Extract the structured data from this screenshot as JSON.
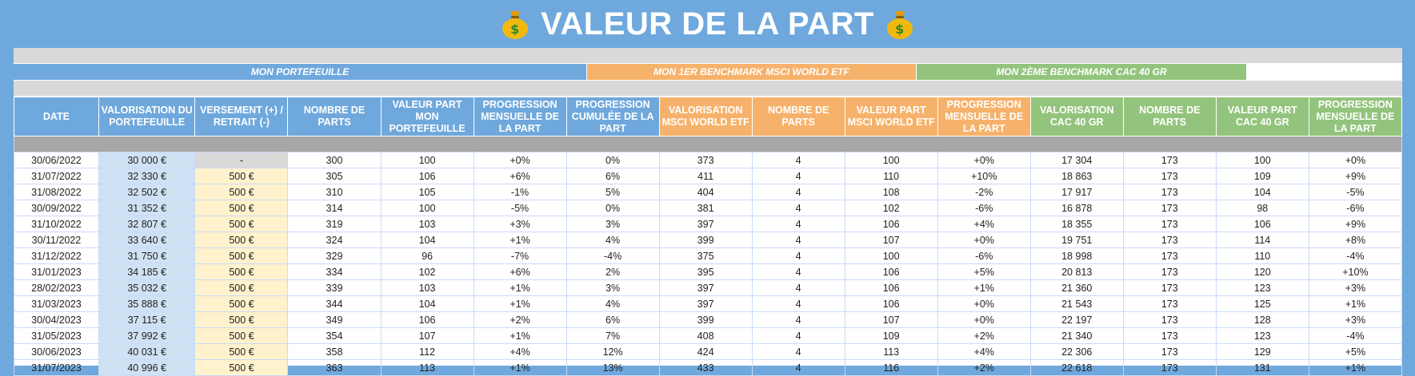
{
  "title": "VALEUR DE LA PART",
  "icons": {
    "left": "money-bag-icon",
    "right": "money-bag-icon"
  },
  "colors": {
    "blue": "#6fa8dc",
    "orange": "#f6b26b",
    "green": "#93c47d",
    "positive": "#2e9e2e",
    "negative": "#e06666"
  },
  "sections": [
    {
      "label": "MON PORTEFEUILLE",
      "color": "blue"
    },
    {
      "label": "MON 1ER BENCHMARK MSCI WORLD ETF",
      "color": "orange"
    },
    {
      "label": "MON 2ÈME BENCHMARK CAC 40 GR",
      "color": "green"
    }
  ],
  "columns": [
    {
      "key": "date",
      "label": "DATE",
      "color": "blue"
    },
    {
      "key": "valo",
      "label": "VALORISATION DU PORTEFEUILLE",
      "color": "blue"
    },
    {
      "key": "vers",
      "label": "VERSEMENT (+) / RETRAIT (-)",
      "color": "blue"
    },
    {
      "key": "parts",
      "label": "NOMBRE DE PARTS",
      "color": "blue"
    },
    {
      "key": "vpart",
      "label": "VALEUR PART MON PORTEFEUILLE",
      "color": "blue"
    },
    {
      "key": "prog",
      "label": "PROGRESSION MENSUELLE DE LA PART",
      "color": "blue"
    },
    {
      "key": "cum",
      "label": "PROGRESSION CUMULÉE DE LA PART",
      "color": "blue"
    },
    {
      "key": "mvalo",
      "label": "VALORISATION MSCI WORLD ETF",
      "color": "orange"
    },
    {
      "key": "mparts",
      "label": "NOMBRE DE PARTS",
      "color": "orange"
    },
    {
      "key": "mvpart",
      "label": "VALEUR PART MSCI WORLD ETF",
      "color": "orange"
    },
    {
      "key": "mprog",
      "label": "PROGRESSION MENSUELLE DE LA PART",
      "color": "orange"
    },
    {
      "key": "cvalo",
      "label": "VALORISATION CAC 40 GR",
      "color": "green"
    },
    {
      "key": "cparts",
      "label": "NOMBRE DE PARTS",
      "color": "green"
    },
    {
      "key": "cvpart",
      "label": "VALEUR PART CAC 40 GR",
      "color": "green"
    },
    {
      "key": "cprog",
      "label": "PROGRESSION MENSUELLE DE LA PART",
      "color": "green"
    }
  ],
  "rows": [
    [
      "30/06/2022",
      "30 000 €",
      "-",
      "300",
      "100",
      "+0%",
      "0%",
      "373",
      "4",
      "100",
      "+0%",
      "17 304",
      "173",
      "100",
      "+0%"
    ],
    [
      "31/07/2022",
      "32 330 €",
      "500 €",
      "305",
      "106",
      "+6%",
      "6%",
      "411",
      "4",
      "110",
      "+10%",
      "18 863",
      "173",
      "109",
      "+9%"
    ],
    [
      "31/08/2022",
      "32 502 €",
      "500 €",
      "310",
      "105",
      "-1%",
      "5%",
      "404",
      "4",
      "108",
      "-2%",
      "17 917",
      "173",
      "104",
      "-5%"
    ],
    [
      "30/09/2022",
      "31 352 €",
      "500 €",
      "314",
      "100",
      "-5%",
      "0%",
      "381",
      "4",
      "102",
      "-6%",
      "16 878",
      "173",
      "98",
      "-6%"
    ],
    [
      "31/10/2022",
      "32 807 €",
      "500 €",
      "319",
      "103",
      "+3%",
      "3%",
      "397",
      "4",
      "106",
      "+4%",
      "18 355",
      "173",
      "106",
      "+9%"
    ],
    [
      "30/11/2022",
      "33 640 €",
      "500 €",
      "324",
      "104",
      "+1%",
      "4%",
      "399",
      "4",
      "107",
      "+0%",
      "19 751",
      "173",
      "114",
      "+8%"
    ],
    [
      "31/12/2022",
      "31 750 €",
      "500 €",
      "329",
      "96",
      "-7%",
      "-4%",
      "375",
      "4",
      "100",
      "-6%",
      "18 998",
      "173",
      "110",
      "-4%"
    ],
    [
      "31/01/2023",
      "34 185 €",
      "500 €",
      "334",
      "102",
      "+6%",
      "2%",
      "395",
      "4",
      "106",
      "+5%",
      "20 813",
      "173",
      "120",
      "+10%"
    ],
    [
      "28/02/2023",
      "35 032 €",
      "500 €",
      "339",
      "103",
      "+1%",
      "3%",
      "397",
      "4",
      "106",
      "+1%",
      "21 360",
      "173",
      "123",
      "+3%"
    ],
    [
      "31/03/2023",
      "35 888 €",
      "500 €",
      "344",
      "104",
      "+1%",
      "4%",
      "397",
      "4",
      "106",
      "+0%",
      "21 543",
      "173",
      "125",
      "+1%"
    ],
    [
      "30/04/2023",
      "37 115 €",
      "500 €",
      "349",
      "106",
      "+2%",
      "6%",
      "399",
      "4",
      "107",
      "+0%",
      "22 197",
      "173",
      "128",
      "+3%"
    ],
    [
      "31/05/2023",
      "37 992 €",
      "500 €",
      "354",
      "107",
      "+1%",
      "7%",
      "408",
      "4",
      "109",
      "+2%",
      "21 340",
      "173",
      "123",
      "-4%"
    ],
    [
      "30/06/2023",
      "40 031 €",
      "500 €",
      "358",
      "112",
      "+4%",
      "12%",
      "424",
      "4",
      "113",
      "+4%",
      "22 306",
      "173",
      "129",
      "+5%"
    ],
    [
      "31/07/2023",
      "40 996 €",
      "500 €",
      "363",
      "113",
      "+1%",
      "13%",
      "433",
      "4",
      "116",
      "+2%",
      "22 618",
      "173",
      "131",
      "+1%"
    ]
  ]
}
